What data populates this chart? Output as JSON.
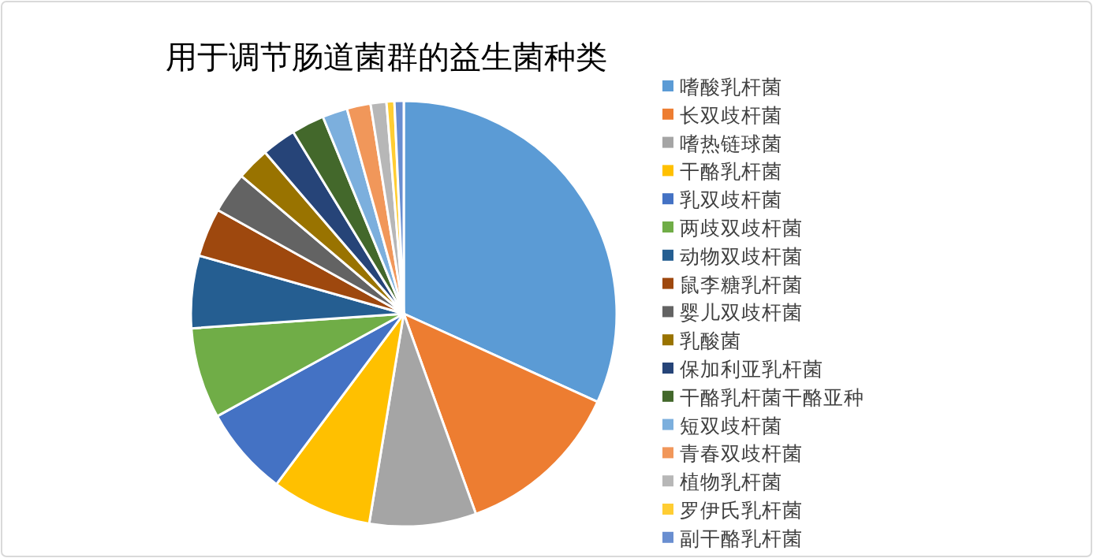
{
  "chart_data": {
    "type": "pie",
    "title": "用于调节肠道菌群的益生菌种类",
    "categories": [
      "嗜酸乳杆菌",
      "长双歧杆菌",
      "嗜热链球菌",
      "干酪乳杆菌",
      "乳双歧杆菌",
      "两歧双歧杆菌",
      "动物双歧杆菌",
      "鼠李糖乳杆菌",
      "婴儿双歧杆菌",
      "乳酸菌",
      "保加利亚乳杆菌",
      "干酪乳杆菌干酪亚种",
      "短双歧杆菌",
      "青春双歧杆菌",
      "植物乳杆菌",
      "罗伊氏乳杆菌",
      "副干酪乳杆菌"
    ],
    "values": [
      31.8,
      12.7,
      8.1,
      7.6,
      6.8,
      6.9,
      5.5,
      3.7,
      3.1,
      2.5,
      2.6,
      2.5,
      1.9,
      1.8,
      1.2,
      0.6,
      0.7
    ],
    "colors": [
      "#5b9bd5",
      "#ed7d31",
      "#a5a5a5",
      "#ffc000",
      "#4472c4",
      "#70ad47",
      "#255e91",
      "#9e480e",
      "#636363",
      "#997300",
      "#264478",
      "#43682b",
      "#7cafdd",
      "#f1975a",
      "#b7b7b7",
      "#ffcd33",
      "#698ed0"
    ],
    "legend": "right"
  }
}
